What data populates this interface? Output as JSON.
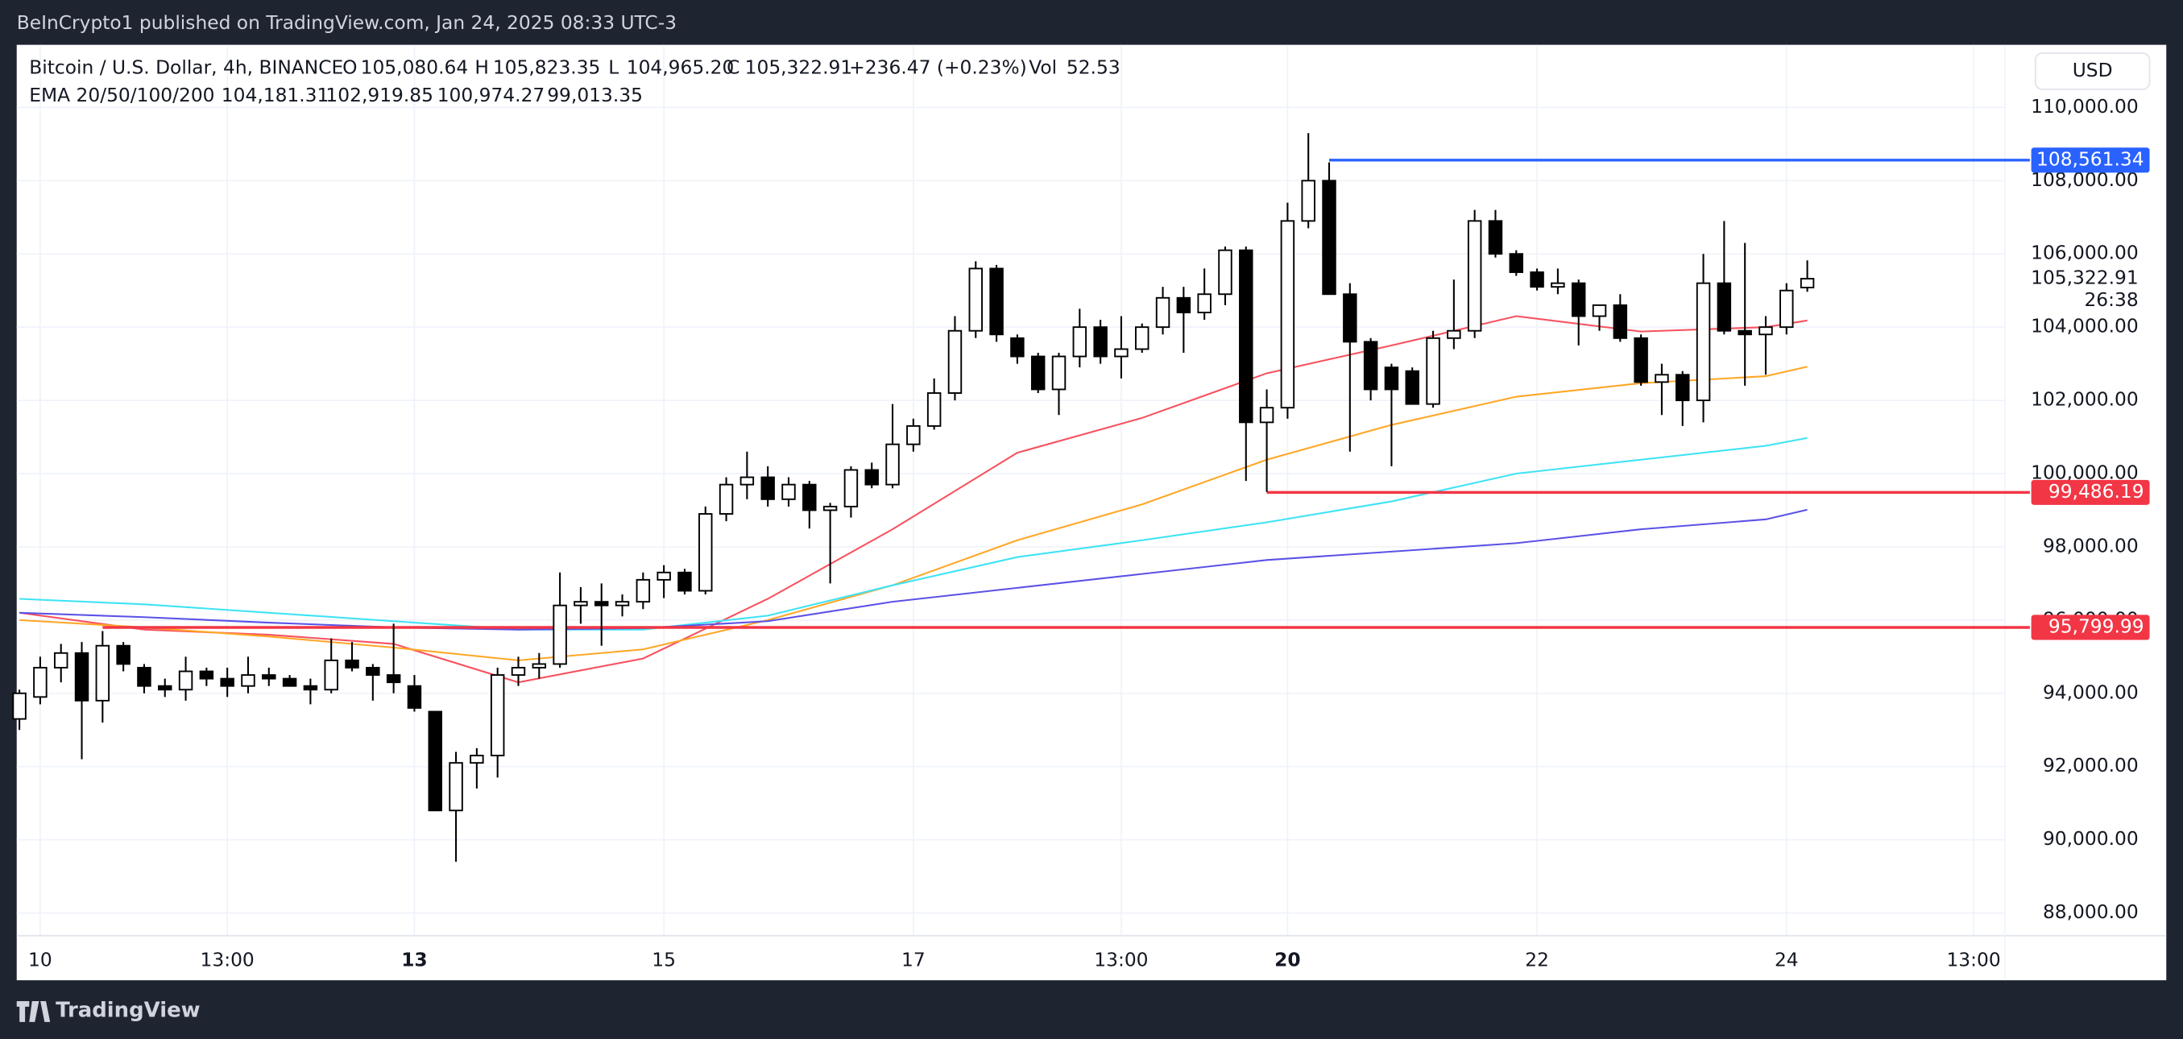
{
  "publisher": "BeInCrypto1 published on TradingView.com, Jan 24, 2025 08:33 UTC-3",
  "brand": "TradingView",
  "currency_button": "USD",
  "chart_data": {
    "type": "candlestick",
    "title": "Bitcoin / U.S. Dollar, 4h, BINANCE",
    "ohlc_header": [
      {
        "label": "O",
        "value": "105,080.64"
      },
      {
        "label": "H",
        "value": "105,823.35"
      },
      {
        "label": "L",
        "value": "104,965.20"
      },
      {
        "label": "C",
        "value": "105,322.91"
      }
    ],
    "change": "+236.47 (+0.23%)",
    "volume": {
      "label": "Vol",
      "value": "52.53"
    },
    "indicator_title": "EMA 20/50/100/200",
    "candles": {
      "open": [
        93300,
        93900,
        94700,
        95100,
        93800,
        95300,
        94700,
        94200,
        94100,
        94600,
        94400,
        94200,
        94500,
        94400,
        94200,
        94100,
        94900,
        94700,
        94500,
        94200,
        93500,
        90800,
        92100,
        92300,
        94500,
        94700,
        94800,
        96400,
        96500,
        96400,
        96500,
        97100,
        97300,
        96800,
        98900,
        99700,
        99900,
        99300,
        99700,
        99000,
        99100,
        100100,
        99700,
        100800,
        101300,
        102200,
        103900,
        105600,
        103700,
        103200,
        102300,
        103200,
        104000,
        103200,
        103400,
        104000,
        104800,
        104400,
        104900,
        106100,
        101400,
        101800,
        106900,
        108000,
        104900,
        103600,
        102900,
        102800,
        101900,
        103700,
        103900,
        106900,
        106000,
        105500,
        105100,
        105200,
        104300,
        104600,
        103700,
        102500,
        102700,
        102000,
        105200,
        103900,
        103800,
        104000,
        105080.64
      ],
      "high": [
        94100,
        95000,
        95350,
        95400,
        95700,
        95400,
        94800,
        94400,
        95000,
        94700,
        94700,
        95000,
        94700,
        94500,
        94400,
        95500,
        95400,
        94800,
        95900,
        94500,
        93500,
        92400,
        92500,
        94700,
        95000,
        95100,
        97300,
        96900,
        97000,
        96700,
        97300,
        97500,
        97400,
        99100,
        99900,
        100600,
        100200,
        99900,
        99800,
        99200,
        100200,
        100300,
        101900,
        101500,
        102600,
        104300,
        105800,
        105700,
        103800,
        103300,
        103300,
        104500,
        104200,
        104300,
        104100,
        105100,
        105100,
        105600,
        106200,
        106200,
        102300,
        107400,
        109300,
        108500,
        105200,
        103700,
        103000,
        102900,
        103900,
        105300,
        107200,
        107200,
        106100,
        105600,
        105600,
        105300,
        104600,
        104900,
        103800,
        103000,
        102800,
        106000,
        106900,
        106300,
        104300,
        105200,
        105823.35
      ],
      "low": [
        93000,
        93700,
        94300,
        92200,
        93200,
        94600,
        94000,
        93900,
        93800,
        94200,
        93900,
        94000,
        94200,
        94200,
        93700,
        94000,
        94600,
        93800,
        94000,
        93500,
        90800,
        89400,
        91400,
        91700,
        94200,
        94400,
        94700,
        95900,
        95300,
        96100,
        96300,
        96600,
        96700,
        96700,
        98700,
        99300,
        99100,
        99100,
        98500,
        97000,
        98800,
        99600,
        99600,
        100600,
        101200,
        102000,
        103700,
        103600,
        103000,
        102200,
        101600,
        102900,
        103000,
        102600,
        103300,
        103800,
        103300,
        104200,
        104600,
        99800,
        99500,
        101500,
        106700,
        104900,
        100600,
        102000,
        100200,
        101900,
        101800,
        103400,
        103700,
        105900,
        105400,
        105000,
        104900,
        103500,
        103900,
        103600,
        102400,
        101600,
        101300,
        101400,
        103800,
        102400,
        102700,
        103800,
        104965.2
      ],
      "close": [
        94000,
        94700,
        95100,
        93800,
        95300,
        94800,
        94200,
        94100,
        94600,
        94400,
        94200,
        94500,
        94400,
        94200,
        94100,
        94900,
        94700,
        94500,
        94300,
        93600,
        90800,
        92100,
        92300,
        94500,
        94700,
        94800,
        96400,
        96500,
        96400,
        96500,
        97100,
        97300,
        96800,
        98900,
        99700,
        99900,
        99300,
        99700,
        99000,
        99100,
        100100,
        99700,
        100800,
        101300,
        102200,
        103900,
        105600,
        103800,
        103200,
        102300,
        103200,
        104000,
        103200,
        103400,
        104000,
        104800,
        104400,
        104900,
        106100,
        101400,
        101800,
        106900,
        108000,
        104900,
        103600,
        102300,
        102300,
        101900,
        103700,
        103900,
        106900,
        106000,
        105500,
        105100,
        105200,
        104300,
        104600,
        103700,
        102500,
        102700,
        102000,
        105200,
        103900,
        103800,
        104000,
        105000,
        105322.91
      ]
    },
    "up_color": "#ffffff",
    "down_color": "#000000",
    "series": [
      {
        "color": "#f7525f",
        "legend_color": "#f23645",
        "last_label": "104,181.31",
        "x": [
          0,
          6,
          12,
          18,
          24,
          30,
          36,
          42,
          48,
          54,
          60,
          66,
          72,
          78,
          84,
          86
        ],
        "values": [
          96200,
          95740,
          95600,
          95350,
          94300,
          94950,
          96580,
          98480,
          100570,
          101520,
          102740,
          103500,
          104300,
          103880,
          104000,
          104181.31
        ]
      },
      {
        "color": "#ffa726",
        "legend_color": "#ff9800",
        "last_label": "102,919.85",
        "x": [
          0,
          6,
          12,
          18,
          24,
          30,
          36,
          42,
          48,
          54,
          60,
          66,
          72,
          78,
          84,
          86
        ],
        "values": [
          96000,
          95800,
          95550,
          95250,
          94900,
          95200,
          96000,
          96950,
          98180,
          99160,
          100380,
          101330,
          102100,
          102470,
          102660,
          102919.85
        ]
      },
      {
        "color": "#3fe3f5",
        "legend_color": "#00e5ff",
        "last_label": "100,974.27",
        "x": [
          0,
          6,
          12,
          18,
          24,
          30,
          36,
          42,
          48,
          54,
          60,
          66,
          72,
          78,
          84,
          86
        ],
        "values": [
          96580,
          96430,
          96200,
          95970,
          95740,
          95740,
          96120,
          96950,
          97720,
          98180,
          98670,
          99240,
          100000,
          100380,
          100760,
          100974.27
        ]
      },
      {
        "color": "#5b52e6",
        "legend_color": "#2121d8",
        "last_label": "99,013.35",
        "x": [
          0,
          6,
          12,
          18,
          24,
          30,
          36,
          42,
          48,
          54,
          60,
          66,
          72,
          78,
          84,
          86
        ],
        "values": [
          96200,
          96080,
          95930,
          95800,
          95740,
          95780,
          95970,
          96500,
          96880,
          97260,
          97640,
          97870,
          98100,
          98480,
          98750,
          99013.35
        ]
      }
    ],
    "levels": [
      {
        "value": 108561.34,
        "label": "108,561.34",
        "color": "#2962ff",
        "from": 63
      },
      {
        "value": 99486.19,
        "label": "99,486.19",
        "color": "#f23645",
        "from": 60
      },
      {
        "value": 95799.99,
        "label": "95,799.99",
        "color": "#f23645",
        "from": 4
      }
    ],
    "last_price": {
      "value": 105322.91,
      "label": "105,322.91",
      "countdown": "26:38"
    },
    "xlim": [
      -0.13,
      95.5
    ],
    "xticks": [
      {
        "value": 1,
        "label": "10"
      },
      {
        "value": 10,
        "label": "13:00"
      },
      {
        "value": 19,
        "label": "13",
        "bold": true
      },
      {
        "value": 31,
        "label": "15"
      },
      {
        "value": 43,
        "label": "17"
      },
      {
        "value": 53,
        "label": "13:00"
      },
      {
        "value": 61,
        "label": "20",
        "bold": true
      },
      {
        "value": 73,
        "label": "22"
      },
      {
        "value": 85,
        "label": "24"
      },
      {
        "value": 94,
        "label": "13:00"
      }
    ],
    "ylim": [
      87380,
      111710
    ],
    "yticks": [
      {
        "value": 88000,
        "label": "88,000.00"
      },
      {
        "value": 90000,
        "label": "90,000.00"
      },
      {
        "value": 92000,
        "label": "92,000.00"
      },
      {
        "value": 94000,
        "label": "94,000.00"
      },
      {
        "value": 96000,
        "label": "96,000.00"
      },
      {
        "value": 98000,
        "label": "98,000.00"
      },
      {
        "value": 100000,
        "label": "100,000.00"
      },
      {
        "value": 102000,
        "label": "102,000.00"
      },
      {
        "value": 104000,
        "label": "104,000.00"
      },
      {
        "value": 106000,
        "label": "106,000.00"
      },
      {
        "value": 108000,
        "label": "108,000.00"
      },
      {
        "value": 110000,
        "label": "110,000.00"
      }
    ],
    "grid": true
  }
}
